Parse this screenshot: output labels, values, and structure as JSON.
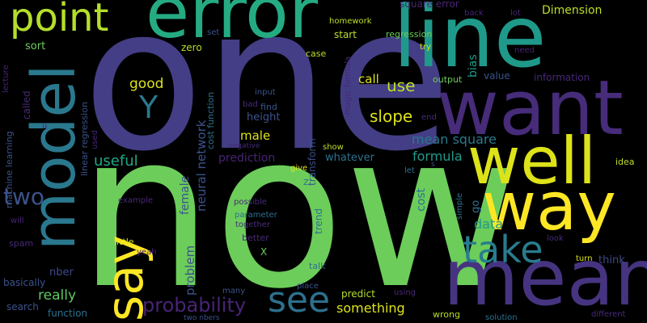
{
  "words": [
    {
      "text": "now",
      "color": "#6ccd5a",
      "orientation": "horizontal"
    },
    {
      "text": "one",
      "color": "#433e85",
      "orientation": "horizontal"
    },
    {
      "text": "line",
      "color": "#1f9a8a",
      "orientation": "horizontal"
    },
    {
      "text": "error",
      "color": "#25ab82",
      "orientation": "horizontal"
    },
    {
      "text": "want",
      "color": "#472c7a",
      "orientation": "horizontal"
    },
    {
      "text": "mean",
      "color": "#463480",
      "orientation": "horizontal"
    },
    {
      "text": "well",
      "color": "#dde318",
      "orientation": "horizontal"
    },
    {
      "text": "way",
      "color": "#fde725",
      "orientation": "horizontal"
    },
    {
      "text": "model",
      "color": "#2a788e",
      "orientation": "vertical"
    },
    {
      "text": "point",
      "color": "#b5de2b",
      "orientation": "horizontal"
    },
    {
      "text": "say",
      "color": "#fde725",
      "orientation": "vertical"
    },
    {
      "text": "take",
      "color": "#287c8e",
      "orientation": "horizontal"
    },
    {
      "text": "see",
      "color": "#2c718e",
      "orientation": "horizontal"
    },
    {
      "text": "Y",
      "color": "#2a788e",
      "orientation": "horizontal"
    },
    {
      "text": "two",
      "color": "#3b528b",
      "orientation": "horizontal"
    },
    {
      "text": "probability",
      "color": "#482475",
      "orientation": "horizontal"
    },
    {
      "text": "slope",
      "color": "#dde318",
      "orientation": "horizontal"
    },
    {
      "text": "use",
      "color": "#bddf26",
      "orientation": "horizontal"
    },
    {
      "text": "good",
      "color": "#dde318",
      "orientation": "horizontal"
    },
    {
      "text": "male",
      "color": "#dde318",
      "orientation": "horizontal"
    },
    {
      "text": "mean square",
      "color": "#2a788e",
      "orientation": "horizontal"
    },
    {
      "text": "formula",
      "color": "#1f9a8a",
      "orientation": "horizontal"
    },
    {
      "text": "useful",
      "color": "#22a785",
      "orientation": "horizontal"
    },
    {
      "text": "data",
      "color": "#1f9a8a",
      "orientation": "horizontal"
    },
    {
      "text": "really",
      "color": "#5ec962",
      "orientation": "horizontal"
    },
    {
      "text": "something",
      "color": "#dde318",
      "orientation": "horizontal"
    },
    {
      "text": "problem",
      "color": "#3b528b",
      "orientation": "vertical"
    },
    {
      "text": "female",
      "color": "#3b528b",
      "orientation": "vertical"
    },
    {
      "text": "neural network",
      "color": "#3b528b",
      "orientation": "vertical"
    },
    {
      "text": "height",
      "color": "#3b528b",
      "orientation": "horizontal"
    },
    {
      "text": "prediction",
      "color": "#482475",
      "orientation": "horizontal"
    },
    {
      "text": "call",
      "color": "#dde318",
      "orientation": "horizontal"
    },
    {
      "text": "Dimension",
      "color": "#bddf26",
      "orientation": "horizontal"
    },
    {
      "text": "bias",
      "color": "#1f9a8a",
      "orientation": "vertical"
    },
    {
      "text": "sort",
      "color": "#6ccd5a",
      "orientation": "horizontal"
    },
    {
      "text": "nber",
      "color": "#3e4989",
      "orientation": "horizontal"
    },
    {
      "text": "think",
      "color": "#3e4989",
      "orientation": "horizontal"
    },
    {
      "text": "whatever",
      "color": "#2c718e",
      "orientation": "horizontal"
    },
    {
      "text": "cost",
      "color": "#2c718e",
      "orientation": "vertical"
    },
    {
      "text": "go",
      "color": "#2c718e",
      "orientation": "vertical"
    },
    {
      "text": "trend",
      "color": "#2c718e",
      "orientation": "vertical"
    },
    {
      "text": "transform",
      "color": "#3b528b",
      "orientation": "vertical"
    },
    {
      "text": "search",
      "color": "#3b528b",
      "orientation": "horizontal"
    },
    {
      "text": "basically",
      "color": "#3b528b",
      "orientation": "horizontal"
    },
    {
      "text": "information",
      "color": "#482878",
      "orientation": "horizontal"
    },
    {
      "text": "value",
      "color": "#3b528b",
      "orientation": "horizontal"
    },
    {
      "text": "output",
      "color": "#6ccd5a",
      "orientation": "horizontal"
    },
    {
      "text": "case",
      "color": "#bddf26",
      "orientation": "horizontal"
    },
    {
      "text": "start",
      "color": "#bddf26",
      "orientation": "horizontal"
    },
    {
      "text": "regression",
      "color": "#6ccd5a",
      "orientation": "horizontal"
    },
    {
      "text": "zero",
      "color": "#b5de2b",
      "orientation": "horizontal"
    },
    {
      "text": "set",
      "color": "#3b528b",
      "orientation": "horizontal"
    },
    {
      "text": "homework",
      "color": "#bddf26",
      "orientation": "horizontal"
    },
    {
      "text": "square error",
      "color": "#482475",
      "orientation": "horizontal"
    },
    {
      "text": "back",
      "color": "#482475",
      "orientation": "horizontal"
    },
    {
      "text": "lot",
      "color": "#482475",
      "orientation": "horizontal"
    },
    {
      "text": "need",
      "color": "#482475",
      "orientation": "horizontal"
    },
    {
      "text": "try",
      "color": "#dde318",
      "orientation": "horizontal"
    },
    {
      "text": "idea",
      "color": "#bddf26",
      "orientation": "horizontal"
    },
    {
      "text": "simple",
      "color": "#2c718e",
      "orientation": "vertical"
    },
    {
      "text": "turn",
      "color": "#dde318",
      "orientation": "horizontal"
    },
    {
      "text": "look",
      "color": "#472c7a",
      "orientation": "horizontal"
    },
    {
      "text": "solution",
      "color": "#2c718e",
      "orientation": "horizontal"
    },
    {
      "text": "different",
      "color": "#472c7a",
      "orientation": "horizontal"
    },
    {
      "text": "wrong",
      "color": "#b5de2b",
      "orientation": "horizontal"
    },
    {
      "text": "using",
      "color": "#482878",
      "orientation": "horizontal"
    },
    {
      "text": "predict",
      "color": "#b5de2b",
      "orientation": "horizontal"
    },
    {
      "text": "place",
      "color": "#3b528b",
      "orientation": "horizontal"
    },
    {
      "text": "many",
      "color": "#3b528b",
      "orientation": "horizontal"
    },
    {
      "text": "two nbers",
      "color": "#3b528b",
      "orientation": "horizontal"
    },
    {
      "text": "talk",
      "color": "#2c718e",
      "orientation": "horizontal"
    },
    {
      "text": "function",
      "color": "#2c718e",
      "orientation": "horizontal"
    },
    {
      "text": "better",
      "color": "#482878",
      "orientation": "horizontal"
    },
    {
      "text": "X",
      "color": "#6ccd5a",
      "orientation": "horizontal"
    },
    {
      "text": "together",
      "color": "#472c7a",
      "orientation": "horizontal"
    },
    {
      "text": "parameter",
      "color": "#2c718e",
      "orientation": "horizontal"
    },
    {
      "text": "possible",
      "color": "#472c7a",
      "orientation": "horizontal"
    },
    {
      "text": "little",
      "color": "#dde318",
      "orientation": "horizontal"
    },
    {
      "text": "example",
      "color": "#482878",
      "orientation": "horizontal"
    },
    {
      "text": "spam",
      "color": "#482878",
      "orientation": "horizontal"
    },
    {
      "text": "will",
      "color": "#482475",
      "orientation": "horizontal"
    },
    {
      "text": "give",
      "color": "#dde318",
      "orientation": "horizontal"
    },
    {
      "text": "show",
      "color": "#bddf26",
      "orientation": "horizontal"
    },
    {
      "text": "let",
      "color": "#2c718e",
      "orientation": "horizontal"
    },
    {
      "text": "Z",
      "color": "#2c718e",
      "orientation": "horizontal"
    },
    {
      "text": "s",
      "color": "#3b528b",
      "orientation": "horizontal"
    },
    {
      "text": "end",
      "color": "#472c7a",
      "orientation": "horizontal"
    },
    {
      "text": "negative",
      "color": "#472c7a",
      "orientation": "horizontal"
    },
    {
      "text": "find",
      "color": "#3b528b",
      "orientation": "horizontal"
    },
    {
      "text": "bad",
      "color": "#482878",
      "orientation": "horizontal"
    },
    {
      "text": "input",
      "color": "#3b528b",
      "orientation": "horizontal"
    },
    {
      "text": "magic formula",
      "color": "#482878",
      "orientation": "vertical"
    },
    {
      "text": "yeah",
      "color": "#482475",
      "orientation": "horizontal"
    },
    {
      "text": "cost function",
      "color": "#2c718e",
      "orientation": "vertical"
    },
    {
      "text": "linear regression",
      "color": "#3b528b",
      "orientation": "vertical"
    },
    {
      "text": "machine learning",
      "color": "#3b528b",
      "orientation": "vertical"
    },
    {
      "text": "lecture",
      "color": "#482475",
      "orientation": "vertical"
    },
    {
      "text": "called",
      "color": "#482878",
      "orientation": "vertical"
    },
    {
      "text": "used",
      "color": "#482475",
      "orientation": "vertical"
    },
    {
      "text": "u",
      "color": "#482475",
      "orientation": "horizontal"
    }
  ]
}
